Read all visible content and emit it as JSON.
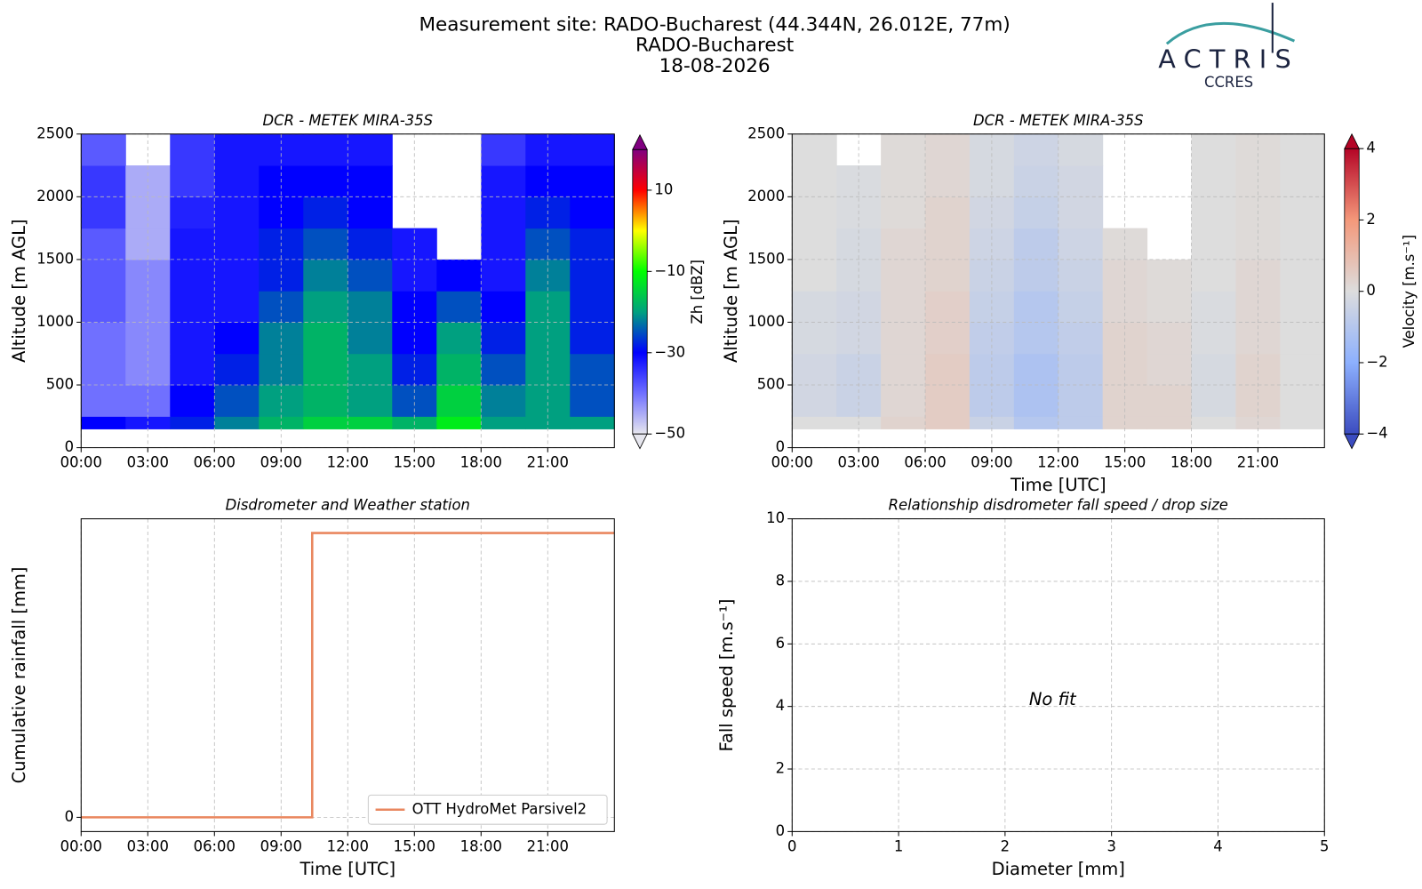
{
  "header": {
    "title": "Measurement site: RADO-Bucharest (44.344N, 26.012E, 77m)",
    "site": "RADO-Bucharest",
    "date": "18-08-2026"
  },
  "logo": {
    "name": "ACTRIS",
    "sub": "CCRES"
  },
  "chart_data": [
    {
      "type": "heatmap",
      "title": "DCR - METEK MIRA-35S",
      "ylabel": "Altitude [m AGL]",
      "x_edges": [
        0,
        2,
        4,
        6,
        8,
        10,
        12,
        14,
        16,
        18,
        20,
        22,
        24
      ],
      "y_edges": [
        150,
        250,
        500,
        750,
        1000,
        1250,
        1500,
        1750,
        2000,
        2250,
        2500
      ],
      "z": [
        [
          -30,
          -32,
          -28,
          -22,
          -18,
          -15,
          -15,
          -18,
          -12,
          -20,
          -20,
          -20
        ],
        [
          -40,
          -40,
          -30,
          -25,
          -20,
          -18,
          -20,
          -25,
          -15,
          -22,
          -20,
          -25
        ],
        [
          -40,
          -42,
          -32,
          -28,
          -22,
          -18,
          -20,
          -28,
          -18,
          -25,
          -20,
          -25
        ],
        [
          -40,
          -42,
          -32,
          -30,
          -22,
          -18,
          -22,
          -30,
          -20,
          -28,
          -20,
          -28
        ],
        [
          -38,
          -42,
          -32,
          -32,
          -25,
          -20,
          -22,
          -30,
          -25,
          -30,
          -20,
          -28
        ],
        [
          -38,
          -42,
          -32,
          -32,
          -28,
          -22,
          -25,
          -32,
          -30,
          -32,
          -22,
          -28
        ],
        [
          -38,
          -45,
          -32,
          -32,
          -28,
          -25,
          -28,
          -32,
          null,
          -32,
          -25,
          -28
        ],
        [
          -35,
          -45,
          -33,
          -32,
          -30,
          -28,
          -30,
          null,
          null,
          -32,
          -28,
          -30
        ],
        [
          -35,
          -45,
          -35,
          -32,
          -30,
          -30,
          -30,
          null,
          null,
          -32,
          -30,
          -30
        ],
        [
          -38,
          null,
          -35,
          -32,
          -32,
          -32,
          -32,
          null,
          null,
          -35,
          -32,
          -32
        ]
      ],
      "xlim": [
        0,
        24
      ],
      "xticks": [
        {
          "value": 0,
          "label": "00:00"
        },
        {
          "value": 3,
          "label": "03:00"
        },
        {
          "value": 6,
          "label": "06:00"
        },
        {
          "value": 9,
          "label": "09:00"
        },
        {
          "value": 12,
          "label": "12:00"
        },
        {
          "value": 15,
          "label": "15:00"
        },
        {
          "value": 18,
          "label": "18:00"
        },
        {
          "value": 21,
          "label": "21:00"
        }
      ],
      "ylim": [
        0,
        2500
      ],
      "yticks": [
        0,
        500,
        1000,
        1500,
        2000,
        2500
      ],
      "grid": true,
      "colorbar": {
        "label": "Zh [dBZ]",
        "clim": [
          -50,
          20
        ],
        "ticks": [
          {
            "value": -50,
            "label": "−50"
          },
          {
            "value": -30,
            "label": "−30"
          },
          {
            "value": -10,
            "label": "−10"
          },
          10
        ],
        "colors": [
          "#e6e6ee",
          "#7070ff",
          "#0000ff",
          "#00a080",
          "#00ff00",
          "#ffff00",
          "#ff0000",
          "#800080"
        ]
      }
    },
    {
      "type": "heatmap",
      "title": "DCR - METEK MIRA-35S",
      "ylabel": "Altitude [m AGL]",
      "xlabel": "Time [UTC]",
      "x_edges": [
        0,
        2,
        4,
        6,
        8,
        10,
        12,
        14,
        16,
        18,
        20,
        22,
        24
      ],
      "y_edges": [
        150,
        250,
        500,
        750,
        1000,
        1250,
        1500,
        1750,
        2000,
        2250,
        2500
      ],
      "z": [
        [
          0,
          0,
          0.3,
          0.5,
          -0.5,
          -1,
          -0.8,
          0.3,
          0.3,
          0,
          0.2,
          0
        ],
        [
          -0.3,
          -0.5,
          0.2,
          0.5,
          -0.8,
          -1.2,
          -0.8,
          0.3,
          0.3,
          -0.2,
          0.3,
          0
        ],
        [
          -0.3,
          -0.5,
          0.2,
          0.5,
          -0.8,
          -1.2,
          -0.8,
          0.3,
          0.2,
          -0.2,
          0.3,
          0
        ],
        [
          -0.2,
          -0.3,
          0.2,
          0.4,
          -0.7,
          -1,
          -0.7,
          0.3,
          0.2,
          -0.1,
          0.2,
          0
        ],
        [
          -0.2,
          -0.3,
          0.2,
          0.4,
          -0.6,
          -1,
          -0.6,
          0.2,
          0.1,
          -0.1,
          0.2,
          0
        ],
        [
          0,
          -0.2,
          0.2,
          0.3,
          -0.5,
          -0.8,
          -0.5,
          0.2,
          0.1,
          0,
          0.2,
          0
        ],
        [
          0,
          -0.2,
          0.2,
          0.3,
          -0.4,
          -0.8,
          -0.4,
          0.1,
          null,
          0,
          0.1,
          0
        ],
        [
          0,
          -0.1,
          0.1,
          0.3,
          -0.3,
          -0.6,
          -0.3,
          null,
          null,
          0,
          0.1,
          0
        ],
        [
          0,
          -0.1,
          0.1,
          0.2,
          -0.2,
          -0.5,
          -0.3,
          null,
          null,
          0,
          0.1,
          0
        ],
        [
          0,
          null,
          0.1,
          0.2,
          -0.2,
          -0.4,
          -0.2,
          null,
          null,
          0,
          0.1,
          0
        ]
      ],
      "xlim": [
        0,
        24
      ],
      "xticks": [
        {
          "value": 0,
          "label": "00:00"
        },
        {
          "value": 3,
          "label": "03:00"
        },
        {
          "value": 6,
          "label": "06:00"
        },
        {
          "value": 9,
          "label": "09:00"
        },
        {
          "value": 12,
          "label": "12:00"
        },
        {
          "value": 15,
          "label": "15:00"
        },
        {
          "value": 18,
          "label": "18:00"
        },
        {
          "value": 21,
          "label": "21:00"
        }
      ],
      "ylim": [
        0,
        2500
      ],
      "yticks": [
        0,
        500,
        1000,
        1500,
        2000,
        2500
      ],
      "grid": true,
      "colorbar": {
        "label": "Velocity [m.s⁻¹]",
        "clim": [
          -4,
          4
        ],
        "ticks": [
          {
            "value": -4,
            "label": "−4"
          },
          {
            "value": -2,
            "label": "−2"
          },
          0,
          2,
          4
        ],
        "colors": [
          "#3b4cc0",
          "#8db0fe",
          "#dddddd",
          "#f4987a",
          "#b40426"
        ]
      }
    },
    {
      "type": "line",
      "title": "Disdrometer and Weather station",
      "ylabel": "Cumulative rainfall [mm]",
      "xlabel": "Time [UTC]",
      "x": [
        0,
        10.4,
        10.4,
        24
      ],
      "series": [
        {
          "name": "OTT HydroMet Parsivel2",
          "color": "#e9875f",
          "values": [
            0,
            0,
            1,
            1
          ]
        }
      ],
      "xlim": [
        0,
        24
      ],
      "xticks": [
        {
          "value": 0,
          "label": "00:00"
        },
        {
          "value": 3,
          "label": "03:00"
        },
        {
          "value": 6,
          "label": "06:00"
        },
        {
          "value": 9,
          "label": "09:00"
        },
        {
          "value": 12,
          "label": "12:00"
        },
        {
          "value": 15,
          "label": "15:00"
        },
        {
          "value": 18,
          "label": "18:00"
        },
        {
          "value": 21,
          "label": "21:00"
        }
      ],
      "ylim": [
        -0.05,
        1.05
      ],
      "yticks": [
        0
      ],
      "grid": true,
      "legend": "lower right"
    },
    {
      "type": "scatter",
      "title": "Relationship disdrometer fall speed / drop size",
      "ylabel": "Fall speed [m.s⁻¹]",
      "xlabel": "Diameter [mm]",
      "annotation": "No fit",
      "xlim": [
        0,
        5
      ],
      "xticks": [
        0,
        1,
        2,
        3,
        4,
        5
      ],
      "ylim": [
        0,
        10
      ],
      "yticks": [
        0,
        2,
        4,
        6,
        8,
        10
      ],
      "grid": true
    }
  ]
}
